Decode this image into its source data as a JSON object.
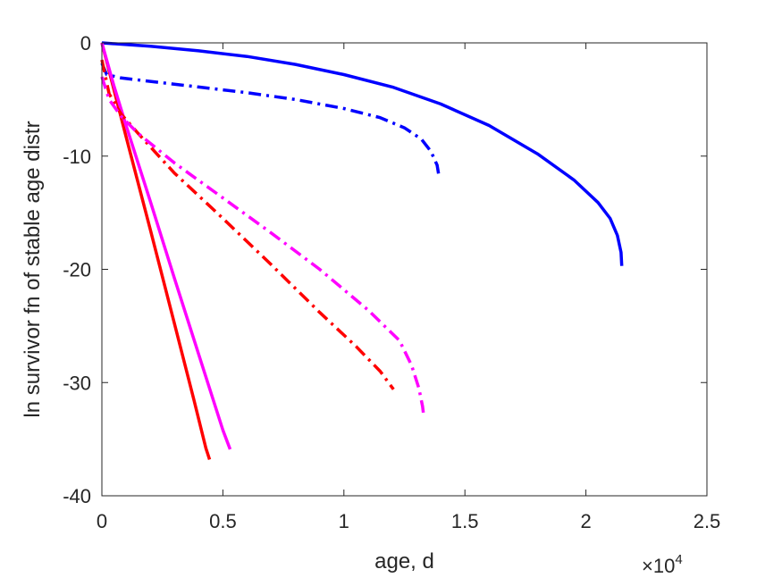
{
  "chart_data": {
    "type": "line",
    "title": "",
    "xlabel": "age, d",
    "ylabel": "ln survivor fn of stable age distr",
    "x_exponent_label": {
      "base": "×10",
      "exp": "4"
    },
    "xlim": [
      0,
      25000
    ],
    "ylim": [
      -40,
      0
    ],
    "xticks": [
      0,
      5000,
      10000,
      15000,
      20000,
      25000
    ],
    "xtick_labels": [
      "0",
      "0.5",
      "1",
      "1.5",
      "2",
      "2.5"
    ],
    "yticks": [
      0,
      -10,
      -20,
      -30,
      -40
    ],
    "ytick_labels": [
      "0",
      "-10",
      "-20",
      "-30",
      "-40"
    ],
    "grid": false,
    "legend": "none",
    "series": [
      {
        "color": "#0000ff",
        "style": "solid",
        "x": [
          0,
          2000,
          4000,
          6000,
          8000,
          10000,
          12000,
          14000,
          16000,
          18000,
          19500,
          20500,
          21000,
          21300,
          21450,
          21480
        ],
        "y": [
          0,
          -0.3,
          -0.7,
          -1.2,
          -1.9,
          -2.8,
          -3.9,
          -5.4,
          -7.3,
          -9.8,
          -12.1,
          -14.1,
          -15.5,
          -17.0,
          -18.5,
          -19.7
        ]
      },
      {
        "color": "#0000ff",
        "style": "dashdot",
        "x": [
          0,
          200,
          800,
          2000,
          4000,
          6000,
          8000,
          10000,
          11500,
          12500,
          13200,
          13600,
          13850,
          13930
        ],
        "y": [
          -1.8,
          -2.8,
          -3.1,
          -3.4,
          -3.9,
          -4.4,
          -5.0,
          -5.8,
          -6.6,
          -7.5,
          -8.5,
          -9.6,
          -10.8,
          -11.8
        ]
      },
      {
        "color": "#ff0000",
        "style": "solid",
        "x": [
          0,
          1000,
          2000,
          3000,
          3800,
          4300,
          4450
        ],
        "y": [
          0,
          -8.3,
          -16.5,
          -24.8,
          -31.5,
          -35.8,
          -36.8
        ]
      },
      {
        "color": "#ff00ff",
        "style": "solid",
        "x": [
          0,
          500,
          1000,
          2000,
          3000,
          4000,
          5000,
          5300
        ],
        "y": [
          0,
          -3.8,
          -7.3,
          -14.0,
          -20.8,
          -27.5,
          -34.2,
          -35.9
        ]
      },
      {
        "color": "#ff0000",
        "style": "dashdot",
        "x": [
          0,
          300,
          800,
          1500,
          3000,
          5000,
          7000,
          9000,
          10500,
          11500,
          12050
        ],
        "y": [
          -1.5,
          -4.5,
          -6.3,
          -8.0,
          -11.5,
          -15.5,
          -19.6,
          -23.8,
          -26.8,
          -29.0,
          -30.6
        ]
      },
      {
        "color": "#ff00ff",
        "style": "dashdot",
        "x": [
          0,
          300,
          800,
          1500,
          3000,
          5000,
          7000,
          9000,
          11000,
          12300,
          12800,
          13100,
          13250,
          13300
        ],
        "y": [
          -3.0,
          -5.0,
          -6.5,
          -8.0,
          -10.6,
          -13.7,
          -16.8,
          -20.0,
          -23.6,
          -26.3,
          -28.5,
          -30.5,
          -32.1,
          -33.0
        ]
      }
    ]
  }
}
